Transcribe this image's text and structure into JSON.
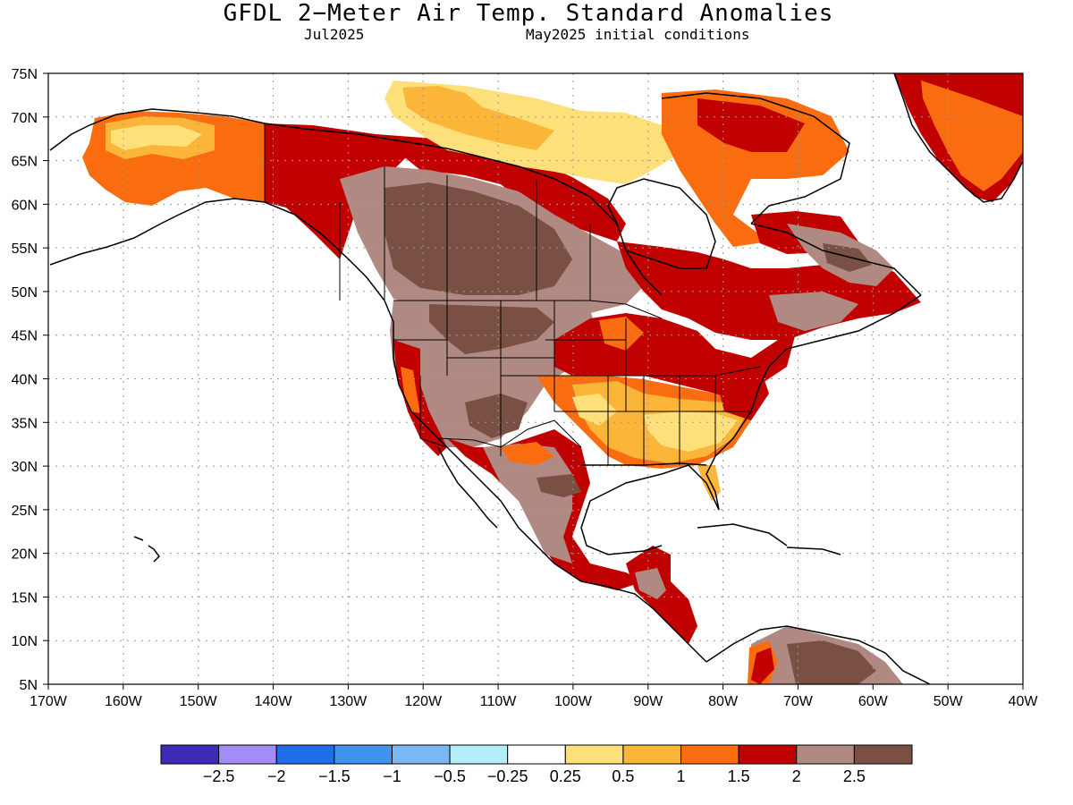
{
  "title": "GFDL 2−Meter Air Temp. Standard Anomalies",
  "subtitle_left": "Jul2025",
  "subtitle_right": "May2025 initial conditions",
  "map": {
    "lat_labels": [
      "75N",
      "70N",
      "65N",
      "60N",
      "55N",
      "50N",
      "45N",
      "40N",
      "35N",
      "30N",
      "25N",
      "20N",
      "15N",
      "10N",
      "5N"
    ],
    "lon_labels": [
      "170W",
      "160W",
      "150W",
      "140W",
      "130W",
      "120W",
      "110W",
      "100W",
      "90W",
      "80W",
      "70W",
      "60W",
      "50W",
      "40W"
    ]
  },
  "legend": {
    "colors": [
      "#3d2bb5",
      "#a38cf8",
      "#1f6ee8",
      "#3f94ee",
      "#79b8f5",
      "#b3eef8",
      "#ffffff",
      "#fde07a",
      "#fbb63a",
      "#f96d10",
      "#c10000",
      "#b08a82",
      "#7a5045"
    ],
    "labels": [
      "−2.5",
      "−2",
      "−1.5",
      "−1",
      "−0.5",
      "−0.25",
      "0.25",
      "0.5",
      "1",
      "1.5",
      "2",
      "2.5"
    ]
  }
}
